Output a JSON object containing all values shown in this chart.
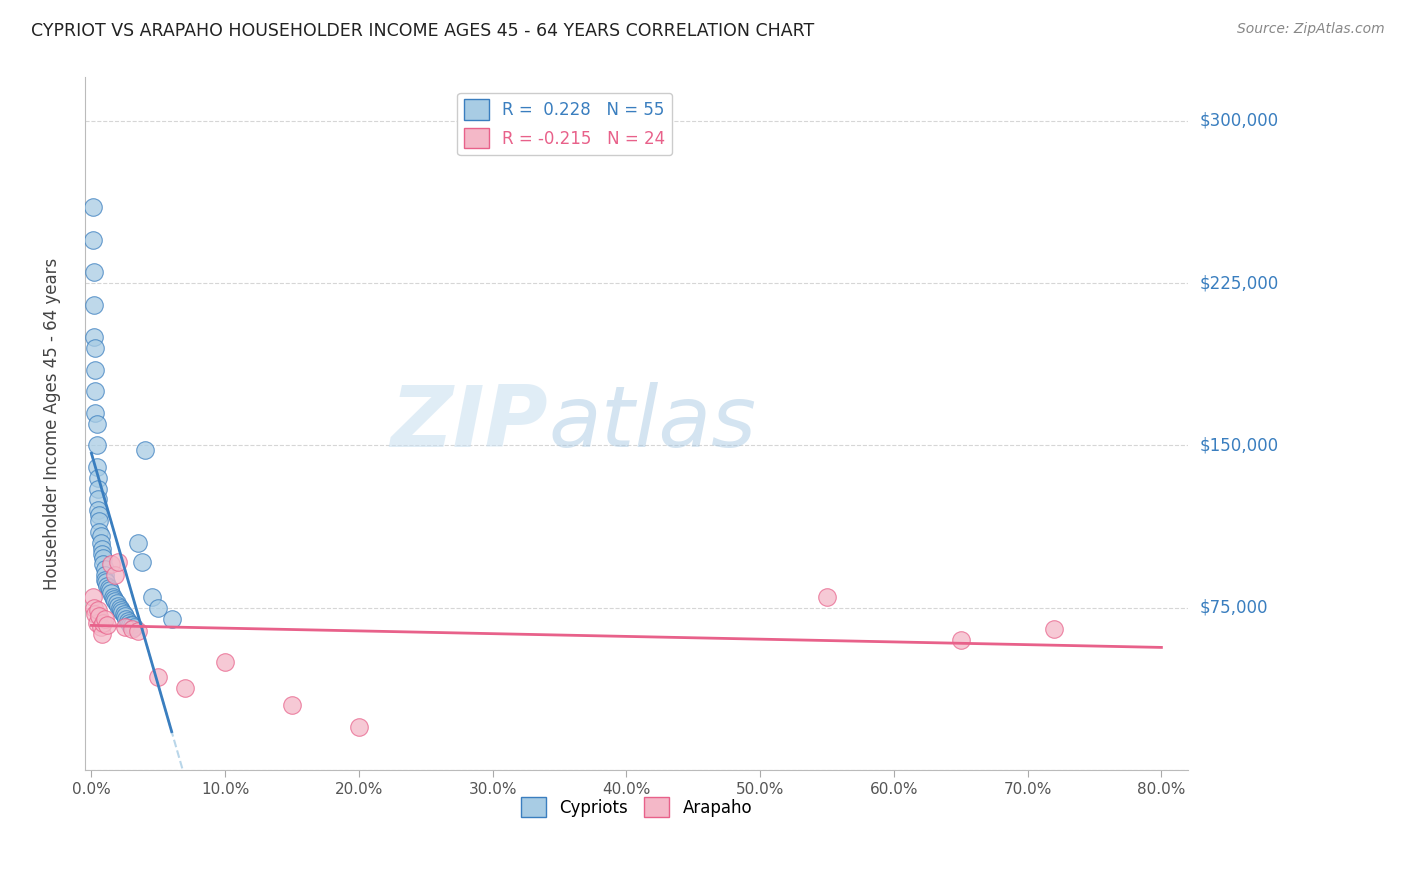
{
  "title": "CYPRIOT VS ARAPAHO HOUSEHOLDER INCOME AGES 45 - 64 YEARS CORRELATION CHART",
  "source": "Source: ZipAtlas.com",
  "ylabel": "Householder Income Ages 45 - 64 years",
  "xlabel_ticks": [
    "0.0%",
    "10.0%",
    "20.0%",
    "30.0%",
    "40.0%",
    "50.0%",
    "60.0%",
    "70.0%",
    "80.0%"
  ],
  "xlabel_vals": [
    0.0,
    0.1,
    0.2,
    0.3,
    0.4,
    0.5,
    0.6,
    0.7,
    0.8
  ],
  "yticks": [
    0,
    75000,
    150000,
    225000,
    300000
  ],
  "ytick_labels": [
    "",
    "$75,000",
    "$150,000",
    "$225,000",
    "$300,000"
  ],
  "ylim": [
    0,
    320000
  ],
  "xlim": [
    -0.005,
    0.82
  ],
  "color_blue": "#a8cce4",
  "color_pink": "#f4b8c8",
  "color_blue_line": "#3a7ebf",
  "color_pink_line": "#e8618a",
  "color_blue_dash": "#a8cce4",
  "watermark_zip": "ZIP",
  "watermark_atlas": "atlas",
  "cypriot_x": [
    0.001,
    0.001,
    0.002,
    0.002,
    0.002,
    0.003,
    0.003,
    0.003,
    0.003,
    0.004,
    0.004,
    0.004,
    0.005,
    0.005,
    0.005,
    0.005,
    0.006,
    0.006,
    0.006,
    0.007,
    0.007,
    0.008,
    0.008,
    0.009,
    0.009,
    0.01,
    0.01,
    0.01,
    0.011,
    0.012,
    0.013,
    0.014,
    0.015,
    0.016,
    0.017,
    0.018,
    0.019,
    0.02,
    0.021,
    0.022,
    0.023,
    0.024,
    0.025,
    0.026,
    0.027,
    0.028,
    0.029,
    0.03,
    0.032,
    0.035,
    0.038,
    0.04,
    0.045,
    0.05,
    0.06
  ],
  "cypriot_y": [
    260000,
    245000,
    230000,
    215000,
    200000,
    195000,
    185000,
    175000,
    165000,
    160000,
    150000,
    140000,
    135000,
    130000,
    125000,
    120000,
    118000,
    115000,
    110000,
    108000,
    105000,
    102000,
    100000,
    98000,
    95000,
    93000,
    90000,
    88000,
    87000,
    85000,
    84000,
    83000,
    82000,
    80000,
    79000,
    78000,
    77000,
    76000,
    75000,
    74000,
    73000,
    72000,
    71000,
    70000,
    69000,
    68000,
    67000,
    67000,
    66000,
    105000,
    96000,
    148000,
    80000,
    75000,
    70000
  ],
  "arapaho_x": [
    0.001,
    0.002,
    0.003,
    0.004,
    0.005,
    0.006,
    0.007,
    0.008,
    0.009,
    0.01,
    0.012,
    0.015,
    0.018,
    0.02,
    0.025,
    0.03,
    0.035,
    0.05,
    0.07,
    0.1,
    0.15,
    0.2,
    0.55,
    0.65,
    0.72
  ],
  "arapaho_y": [
    80000,
    75000,
    72000,
    68000,
    74000,
    71000,
    66000,
    63000,
    68000,
    70000,
    67000,
    95000,
    90000,
    96000,
    66000,
    65000,
    64000,
    43000,
    38000,
    50000,
    30000,
    20000,
    80000,
    60000,
    65000
  ]
}
